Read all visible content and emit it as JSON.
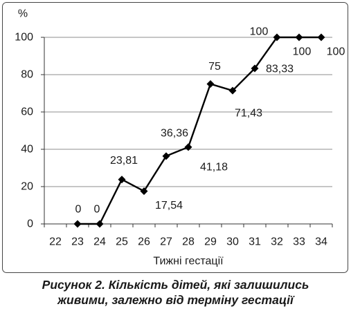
{
  "chart_data": {
    "type": "line",
    "xlabel": "Тижні гестації",
    "ylabel": "%",
    "categories": [
      "22",
      "23",
      "24",
      "25",
      "26",
      "27",
      "28",
      "29",
      "30",
      "31",
      "32",
      "33",
      "34"
    ],
    "ylim": [
      0,
      100
    ],
    "yticks": [
      0,
      20,
      40,
      60,
      80,
      100
    ],
    "ytick_labels": [
      "0",
      "20",
      "40",
      "60",
      "80",
      "100"
    ],
    "grid": true,
    "legend": "none",
    "marker": "diamond",
    "series": [
      {
        "values": [
          null,
          0,
          0,
          23.81,
          17.54,
          36.36,
          41.18,
          75,
          71.43,
          83.33,
          100,
          100,
          100
        ],
        "data_labels": [
          null,
          "0",
          "0",
          "23,81",
          "17,54",
          "36,36",
          "41,18",
          "75",
          "71,43",
          "83,33",
          "100",
          "100",
          "100"
        ]
      }
    ]
  },
  "caption": {
    "line1": "Рисунок 2. Кількість дітей, які залишились",
    "line2": "живими, залежно від терміну гестації"
  },
  "colors": {
    "line": "#000000",
    "grid": "#8c8c8c",
    "axis": "#333333",
    "frame": "#444444",
    "text": "#1a1a1a"
  }
}
